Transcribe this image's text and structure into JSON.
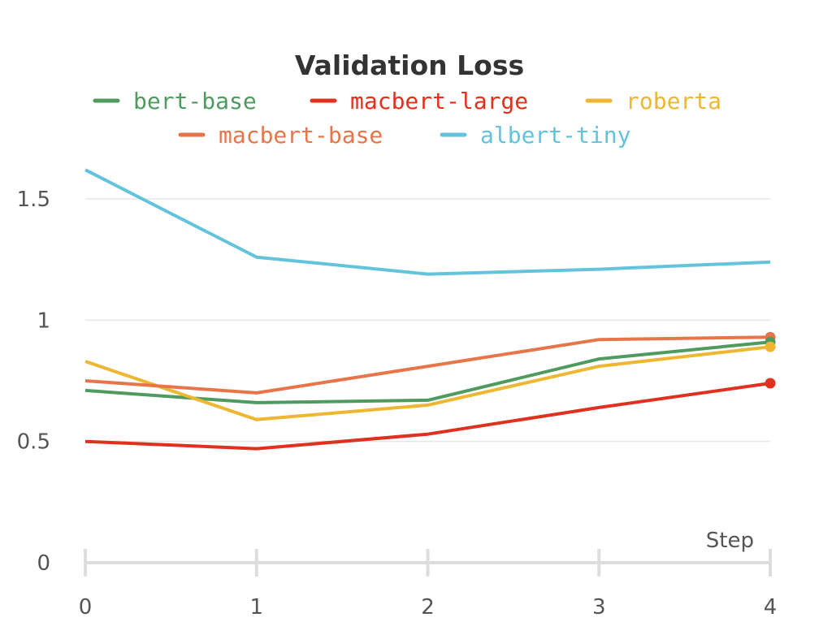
{
  "chart_data": {
    "type": "line",
    "title": "Validation Loss",
    "xlabel": "Step",
    "ylabel": "",
    "x": [
      0,
      1,
      2,
      3,
      4
    ],
    "x_ticks": [
      "0",
      "1",
      "2",
      "3",
      "4"
    ],
    "y_ticks": [
      "0",
      "0.5",
      "1",
      "1.5"
    ],
    "ylim": [
      0,
      1.7
    ],
    "xlim": [
      0,
      4
    ],
    "grid": true,
    "legend_position": "top",
    "series": [
      {
        "name": "bert-base",
        "color": "#4e9a5f",
        "values": [
          0.71,
          0.66,
          0.67,
          0.84,
          0.91
        ]
      },
      {
        "name": "macbert-large",
        "color": "#e0301e",
        "values": [
          0.5,
          0.47,
          0.53,
          0.64,
          0.74
        ]
      },
      {
        "name": "roberta",
        "color": "#edb732",
        "values": [
          0.83,
          0.59,
          0.65,
          0.81,
          0.89
        ]
      },
      {
        "name": "macbert-base",
        "color": "#e8754a",
        "values": [
          0.75,
          0.7,
          0.81,
          0.92,
          0.93
        ]
      },
      {
        "name": "albert-tiny",
        "color": "#63c3dc",
        "values": [
          1.62,
          1.26,
          1.19,
          1.21,
          1.24
        ]
      }
    ]
  }
}
